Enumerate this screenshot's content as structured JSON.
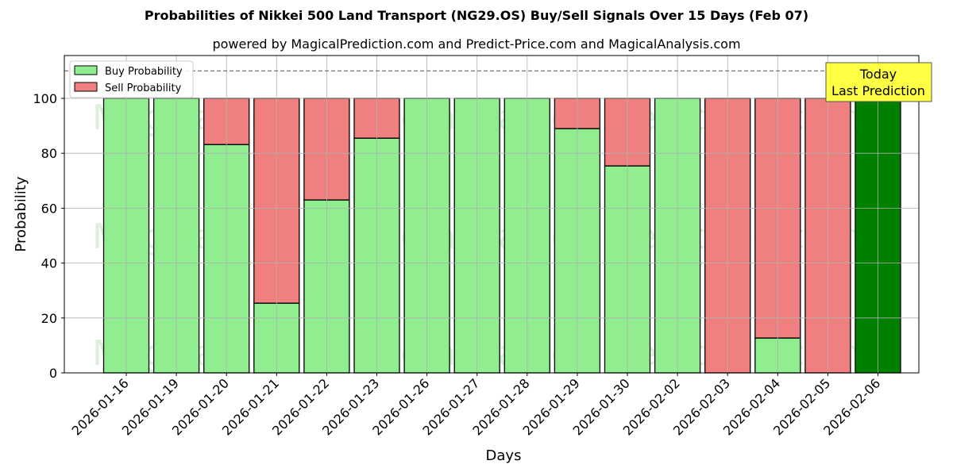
{
  "chart_data": {
    "type": "bar",
    "stacked": true,
    "title": "Probabilities of Nikkei 500 Land Transport (NG29.OS) Buy/Sell Signals Over 15 Days (Feb 07)",
    "subtitle": "powered by MagicalPrediction.com and Predict-Price.com and MagicalAnalysis.com",
    "xlabel": "Days",
    "ylabel": "Probability",
    "ylim": [
      0,
      115
    ],
    "yticks": [
      0,
      20,
      40,
      60,
      80,
      100
    ],
    "grid": true,
    "threshold_line": 110,
    "legend_position": "upper left",
    "categories": [
      "2026-01-16",
      "2026-01-19",
      "2026-01-20",
      "2026-01-21",
      "2026-01-22",
      "2026-01-23",
      "2026-01-26",
      "2026-01-27",
      "2026-01-28",
      "2026-01-29",
      "2026-01-30",
      "2026-02-02",
      "2026-02-03",
      "2026-02-04",
      "2026-02-05",
      "2026-02-06"
    ],
    "series": [
      {
        "name": "Buy Probability",
        "color": "#90ee90",
        "values": [
          100,
          100,
          83.2,
          25.4,
          63.0,
          85.5,
          100,
          100,
          100,
          89.0,
          75.4,
          100,
          0,
          12.7,
          0,
          100
        ]
      },
      {
        "name": "Sell Probability",
        "color": "#f08080",
        "values": [
          0,
          0,
          16.8,
          74.6,
          37.0,
          14.5,
          0,
          0,
          0,
          11.0,
          24.6,
          0,
          100,
          87.3,
          100,
          0
        ]
      }
    ],
    "highlight": {
      "index": 15,
      "color": "#008000",
      "annotation": [
        "Today",
        "Last Prediction"
      ],
      "annotation_bg": "#ffff44"
    },
    "watermarks": [
      "MagicalAnalysis.com",
      "MagicalPrediction.com"
    ]
  },
  "legend": {
    "buy": "Buy Probability",
    "sell": "Sell Probability"
  },
  "annotation": {
    "line1": "Today",
    "line2": "Last Prediction"
  }
}
